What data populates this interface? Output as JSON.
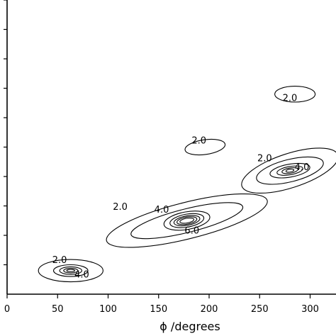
{
  "chart_data": {
    "type": "contour",
    "xlabel": "ϕ /degrees",
    "ylabel": "",
    "xlim": [
      0,
      325
    ],
    "x_ticks": [
      0,
      50,
      100,
      150,
      200,
      250,
      300
    ],
    "ylim": [
      0,
      10
    ],
    "y_ticks": [
      1,
      2,
      3,
      4,
      5,
      6,
      7,
      8,
      9,
      10
    ],
    "y_tick_labels_visible": false,
    "grid": false,
    "features": [
      {
        "id": "peak-60",
        "center": [
          63,
          0.8
        ],
        "contours": [
          {
            "rx": 32,
            "ry": 0.38,
            "rot": 0
          },
          {
            "rx": 17,
            "ry": 0.2,
            "rot": 0
          },
          {
            "rx": 11,
            "ry": 0.13,
            "rot": 0
          },
          {
            "rx": 7,
            "ry": 0.08,
            "rot": 0
          },
          {
            "rx": 4,
            "ry": 0.04,
            "rot": 0
          }
        ],
        "labels": [
          {
            "text": "2.0",
            "x": 52,
            "y": 1.15
          },
          {
            "text": "4.0",
            "x": 74,
            "y": 0.65
          }
        ]
      },
      {
        "id": "peak-170",
        "center": [
          178,
          2.5
        ],
        "contours": [
          {
            "rx": 82,
            "ry": 0.62,
            "rot": -14
          },
          {
            "rx": 57,
            "ry": 0.4,
            "rot": -14
          },
          {
            "rx": 23,
            "ry": 0.3,
            "rot": -10
          },
          {
            "rx": 17,
            "ry": 0.22,
            "rot": -10
          },
          {
            "rx": 13,
            "ry": 0.16,
            "rot": -10
          },
          {
            "rx": 10,
            "ry": 0.12,
            "rot": -10
          },
          {
            "rx": 7,
            "ry": 0.08,
            "rot": -10
          }
        ],
        "labels": [
          {
            "text": "2.0",
            "x": 112,
            "y": 2.95
          },
          {
            "text": "4.0",
            "x": 153,
            "y": 2.85
          },
          {
            "text": "6.0",
            "x": 183,
            "y": 2.15
          }
        ]
      },
      {
        "id": "peak-270",
        "center": [
          280,
          4.2
        ],
        "contours": [
          {
            "rx": 50,
            "ry": 0.58,
            "rot": -18
          },
          {
            "rx": 34,
            "ry": 0.38,
            "rot": -14
          },
          {
            "rx": 20,
            "ry": 0.22,
            "rot": -10
          },
          {
            "rx": 13,
            "ry": 0.14,
            "rot": -10
          },
          {
            "rx": 8,
            "ry": 0.09,
            "rot": -10
          },
          {
            "rx": 4,
            "ry": 0.05,
            "rot": -10
          }
        ],
        "labels": [
          {
            "text": "2.0",
            "x": 255,
            "y": 4.6
          },
          {
            "text": "4.0",
            "x": 292,
            "y": 4.3
          }
        ]
      },
      {
        "id": "island-200",
        "center": [
          196,
          5.0
        ],
        "contours": [
          {
            "rx": 20,
            "ry": 0.25,
            "rot": -8
          }
        ],
        "labels": [
          {
            "text": "2.0",
            "x": 190,
            "y": 5.2
          }
        ]
      },
      {
        "id": "island-280",
        "center": [
          285,
          6.8
        ],
        "contours": [
          {
            "rx": 20,
            "ry": 0.27,
            "rot": 0
          }
        ],
        "labels": [
          {
            "text": "2.0",
            "x": 280,
            "y": 6.65
          }
        ]
      }
    ]
  }
}
